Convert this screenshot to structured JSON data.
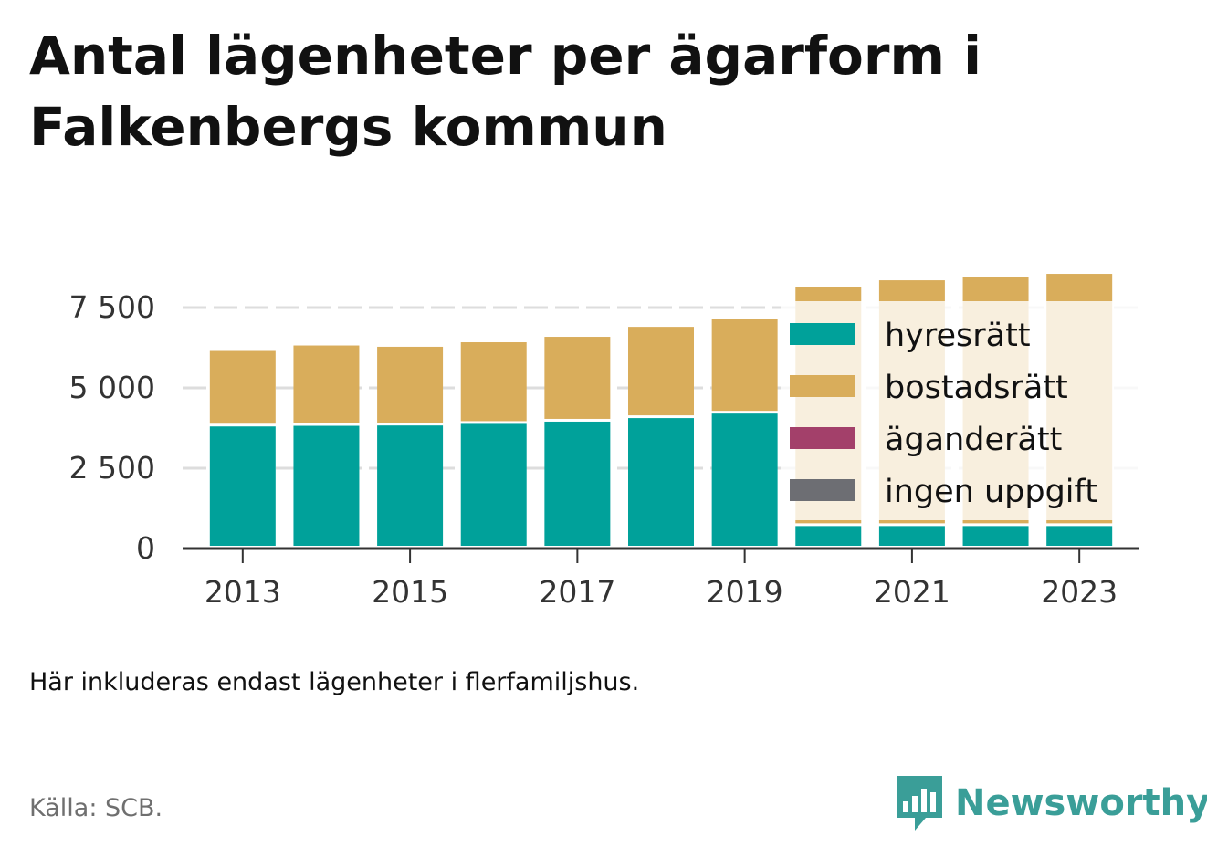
{
  "title": "Antal lägenheter per ägarform i Falkenbergs kommun",
  "note": "Här inkluderas endast lägenheter i flerfamiljshus.",
  "source": "Källa: SCB.",
  "brand": "Newsworthy",
  "colors": {
    "hyresratt": "#00a19a",
    "bostadsratt": "#d9ad5b",
    "aganderatt": "#a3406a",
    "ingen_uppgift": "#6d6e73",
    "axis": "#333333",
    "grid": "#dddddd",
    "brand": "#3a9e98"
  },
  "chart_data": {
    "type": "bar",
    "stacked": true,
    "categories": [
      "2013",
      "2014",
      "2015",
      "2016",
      "2017",
      "2018",
      "2019",
      "2020",
      "2021",
      "2022",
      "2023"
    ],
    "x_tick_labels": [
      "2013",
      "2015",
      "2017",
      "2019",
      "2021",
      "2023"
    ],
    "y_ticks": [
      0,
      2500,
      5000,
      7500
    ],
    "y_tick_labels": [
      "0",
      "2 500",
      "5 000",
      "7 500"
    ],
    "ylim": [
      0,
      7900
    ],
    "grid": "horizontal dashed",
    "legend_position": "inside right",
    "series": [
      {
        "name": "hyresrätt",
        "color_key": "hyresratt",
        "values": [
          3800,
          3820,
          3830,
          3880,
          3950,
          4060,
          4200,
          700,
          700,
          700,
          700
        ]
      },
      {
        "name": "bostadsrätt",
        "color_key": "bostadsratt",
        "values": [
          2350,
          2500,
          2450,
          2540,
          2640,
          2840,
          2950,
          7450,
          7650,
          7750,
          7850
        ]
      },
      {
        "name": "äganderätt",
        "color_key": "aganderatt",
        "values": [
          0,
          0,
          0,
          0,
          0,
          0,
          0,
          0,
          0,
          0,
          0
        ]
      },
      {
        "name": "ingen uppgift",
        "color_key": "ingen_uppgift",
        "values": [
          0,
          0,
          0,
          0,
          0,
          0,
          0,
          0,
          0,
          0,
          0
        ]
      }
    ]
  }
}
